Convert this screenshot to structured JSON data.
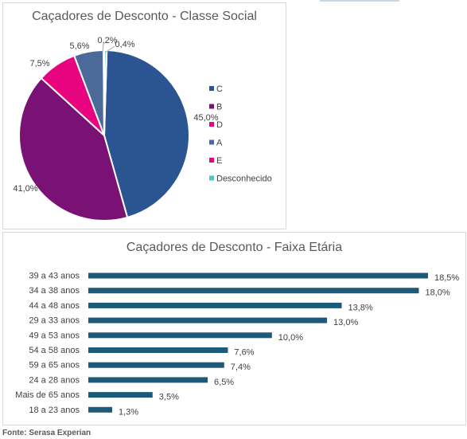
{
  "source": "Fonte: Serasa Experian",
  "chart_data": [
    {
      "type": "pie",
      "title": "Caçadores de Desconto - Classe Social",
      "slices": [
        {
          "name": "C",
          "value": 45.0,
          "label": "45,0%",
          "color": "#2b5592"
        },
        {
          "name": "B",
          "value": 41.0,
          "label": "41,0%",
          "color": "#7a1175"
        },
        {
          "name": "D",
          "value": 7.5,
          "label": "7,5%",
          "color": "#e8047f"
        },
        {
          "name": "A",
          "value": 5.6,
          "label": "5,6%",
          "color": "#4b6a9a"
        },
        {
          "name": "E",
          "value": 0.2,
          "label": "0,2%",
          "color": "#e8047f"
        },
        {
          "name": "Desconhecido",
          "value": 0.4,
          "label": "0,4%",
          "color": "#4bc4d0"
        }
      ],
      "legend": "right"
    },
    {
      "type": "bar",
      "orientation": "horizontal",
      "title": "Caçadores de Desconto - Faixa Etária",
      "color": "#1c5a79",
      "categories": [
        "39 a 43 anos",
        "34 a 38 anos",
        "44 a 48 anos",
        "29 a 33 anos",
        "49 a 53 anos",
        "54 a 58 anos",
        "59 a 65 anos",
        "24 a 28 anos",
        "Mais de 65 anos",
        "18 a 23 anos"
      ],
      "values": [
        18.5,
        18.0,
        13.8,
        13.0,
        10.0,
        7.6,
        7.4,
        6.5,
        3.5,
        1.3
      ],
      "labels": [
        "18,5%",
        "18,0%",
        "13,8%",
        "13,0%",
        "10,0%",
        "7,6%",
        "7,4%",
        "6,5%",
        "3,5%",
        "1,3%"
      ],
      "xlim": [
        0,
        18.5
      ]
    }
  ]
}
